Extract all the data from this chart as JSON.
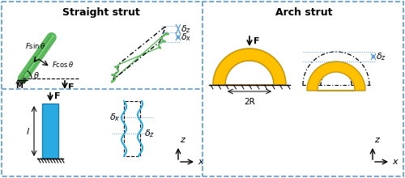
{
  "title_left": "Straight strut",
  "title_right": "Arch strut",
  "bg_color": "#ffffff",
  "border_color": "#5B9BD5",
  "green_strut": "#5CB85C",
  "green_dark": "#3a7a3a",
  "blue_col": "#29ABE2",
  "blue_dark": "#1a7aaa",
  "orange_col": "#FFC000",
  "orange_dark": "#c8960a",
  "black": "#000000",
  "gray": "#888888"
}
